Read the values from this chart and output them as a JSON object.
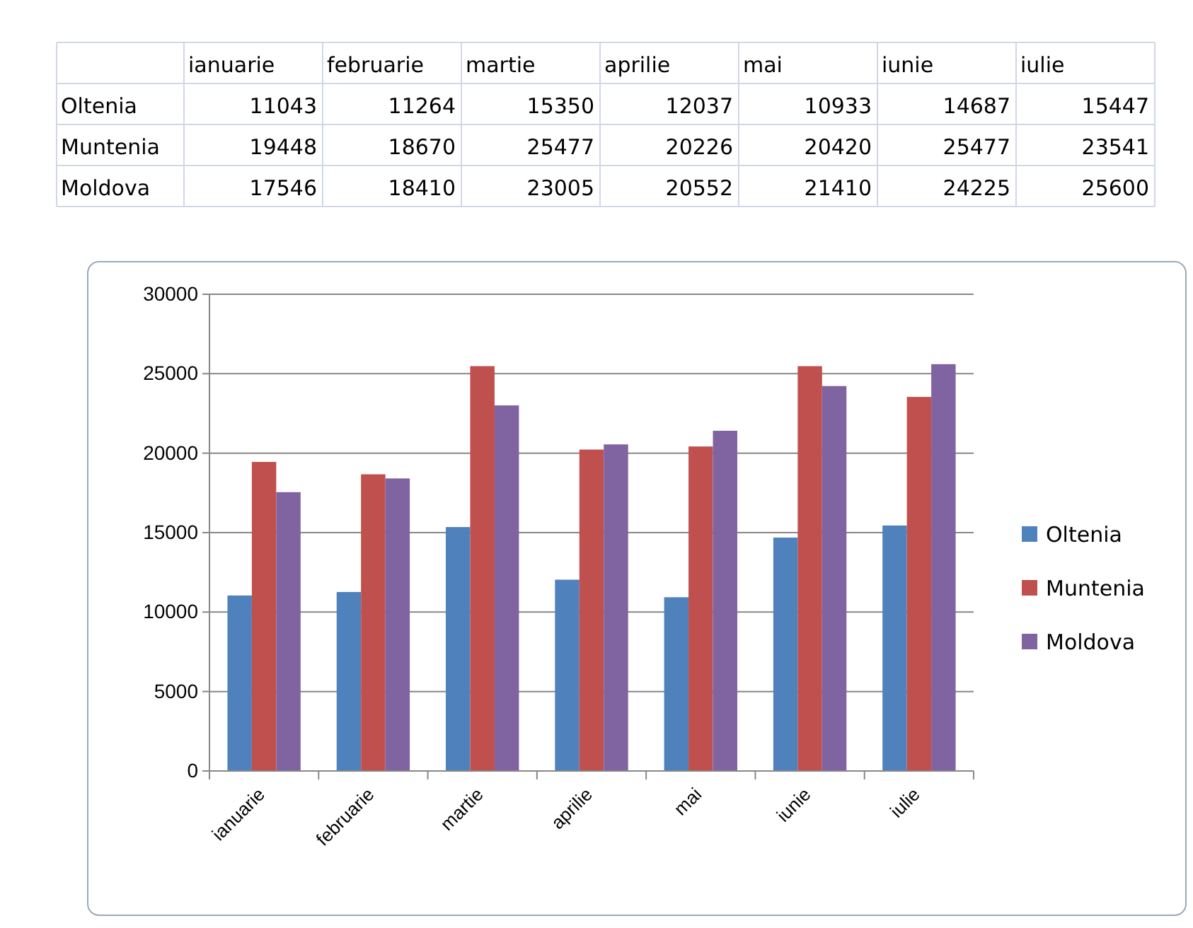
{
  "chart_data": [
    {
      "type": "other",
      "categories": [
        "ianuarie",
        "februarie",
        "martie",
        "aprilie",
        "mai",
        "iunie",
        "iulie"
      ],
      "series": [
        {
          "name": "Oltenia",
          "values": [
            11043,
            11264,
            15350,
            12037,
            10933,
            14687,
            15447
          ]
        },
        {
          "name": "Muntenia",
          "values": [
            19448,
            18670,
            25477,
            20226,
            20420,
            25477,
            23541
          ]
        },
        {
          "name": "Moldova",
          "values": [
            17546,
            18410,
            23005,
            20552,
            21410,
            24225,
            25600
          ]
        }
      ],
      "data_labels": true
    },
    {
      "type": "bar",
      "categories": [
        "ianuarie",
        "februarie",
        "martie",
        "aprilie",
        "mai",
        "iunie",
        "iulie"
      ],
      "series": [
        {
          "name": "Oltenia",
          "color": "#4f81bd",
          "values": [
            11043,
            11264,
            15350,
            12037,
            10933,
            14687,
            15447
          ]
        },
        {
          "name": "Muntenia",
          "color": "#c0504d",
          "values": [
            19448,
            18670,
            25477,
            20226,
            20420,
            25477,
            23541
          ]
        },
        {
          "name": "Moldova",
          "color": "#8064a2",
          "values": [
            17546,
            18410,
            23005,
            20552,
            21410,
            24225,
            25600
          ]
        }
      ],
      "ylim": [
        0,
        30000
      ],
      "yticks": [
        0,
        5000,
        10000,
        15000,
        20000,
        25000,
        30000
      ],
      "grid": "y",
      "legend": "right"
    }
  ]
}
